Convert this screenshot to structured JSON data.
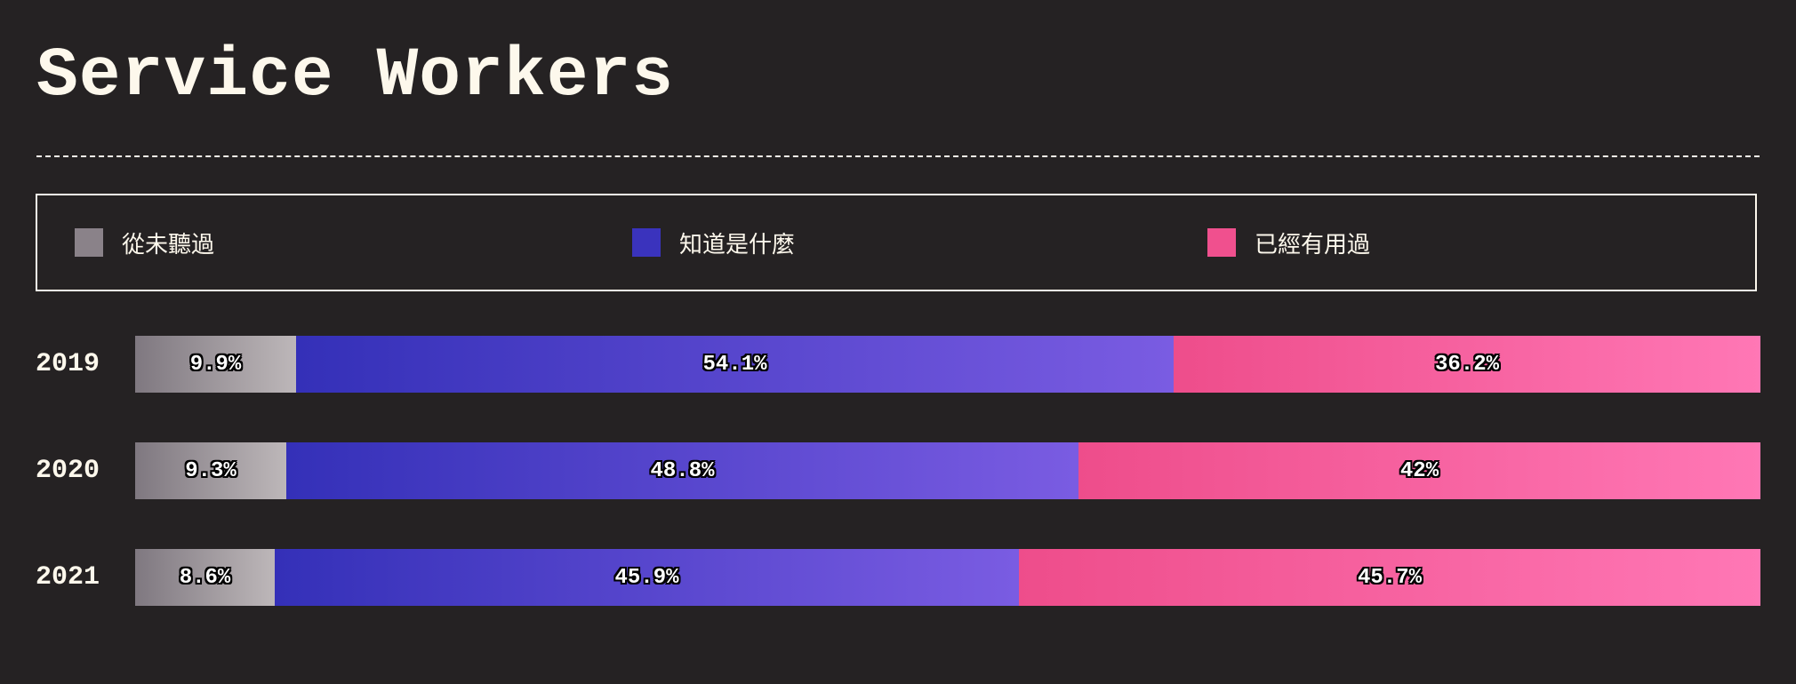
{
  "title": "Service Workers",
  "legend": [
    {
      "label": "從未聽過",
      "color": "#8a8289"
    },
    {
      "label": "知道是什麼",
      "color": "#3a33bd"
    },
    {
      "label": "已經有用過",
      "color": "#f0508e"
    }
  ],
  "chart_data": {
    "type": "bar",
    "orientation": "horizontal",
    "stacked": true,
    "percent_stacked": true,
    "categories": [
      "2019",
      "2020",
      "2021"
    ],
    "series": [
      {
        "name": "從未聽過",
        "values": [
          9.9,
          9.3,
          8.6
        ],
        "labels": [
          "9.9%",
          "9.3%",
          "8.6%"
        ]
      },
      {
        "name": "知道是什麼",
        "values": [
          54.1,
          48.8,
          45.9
        ],
        "labels": [
          "54.1%",
          "48.8%",
          "45.9%"
        ]
      },
      {
        "name": "已經有用過",
        "values": [
          36.2,
          42,
          45.7
        ],
        "labels": [
          "36.2%",
          "42%",
          "45.7%"
        ]
      }
    ],
    "xlim": [
      0,
      100
    ],
    "grid": false,
    "legend_position": "top"
  }
}
